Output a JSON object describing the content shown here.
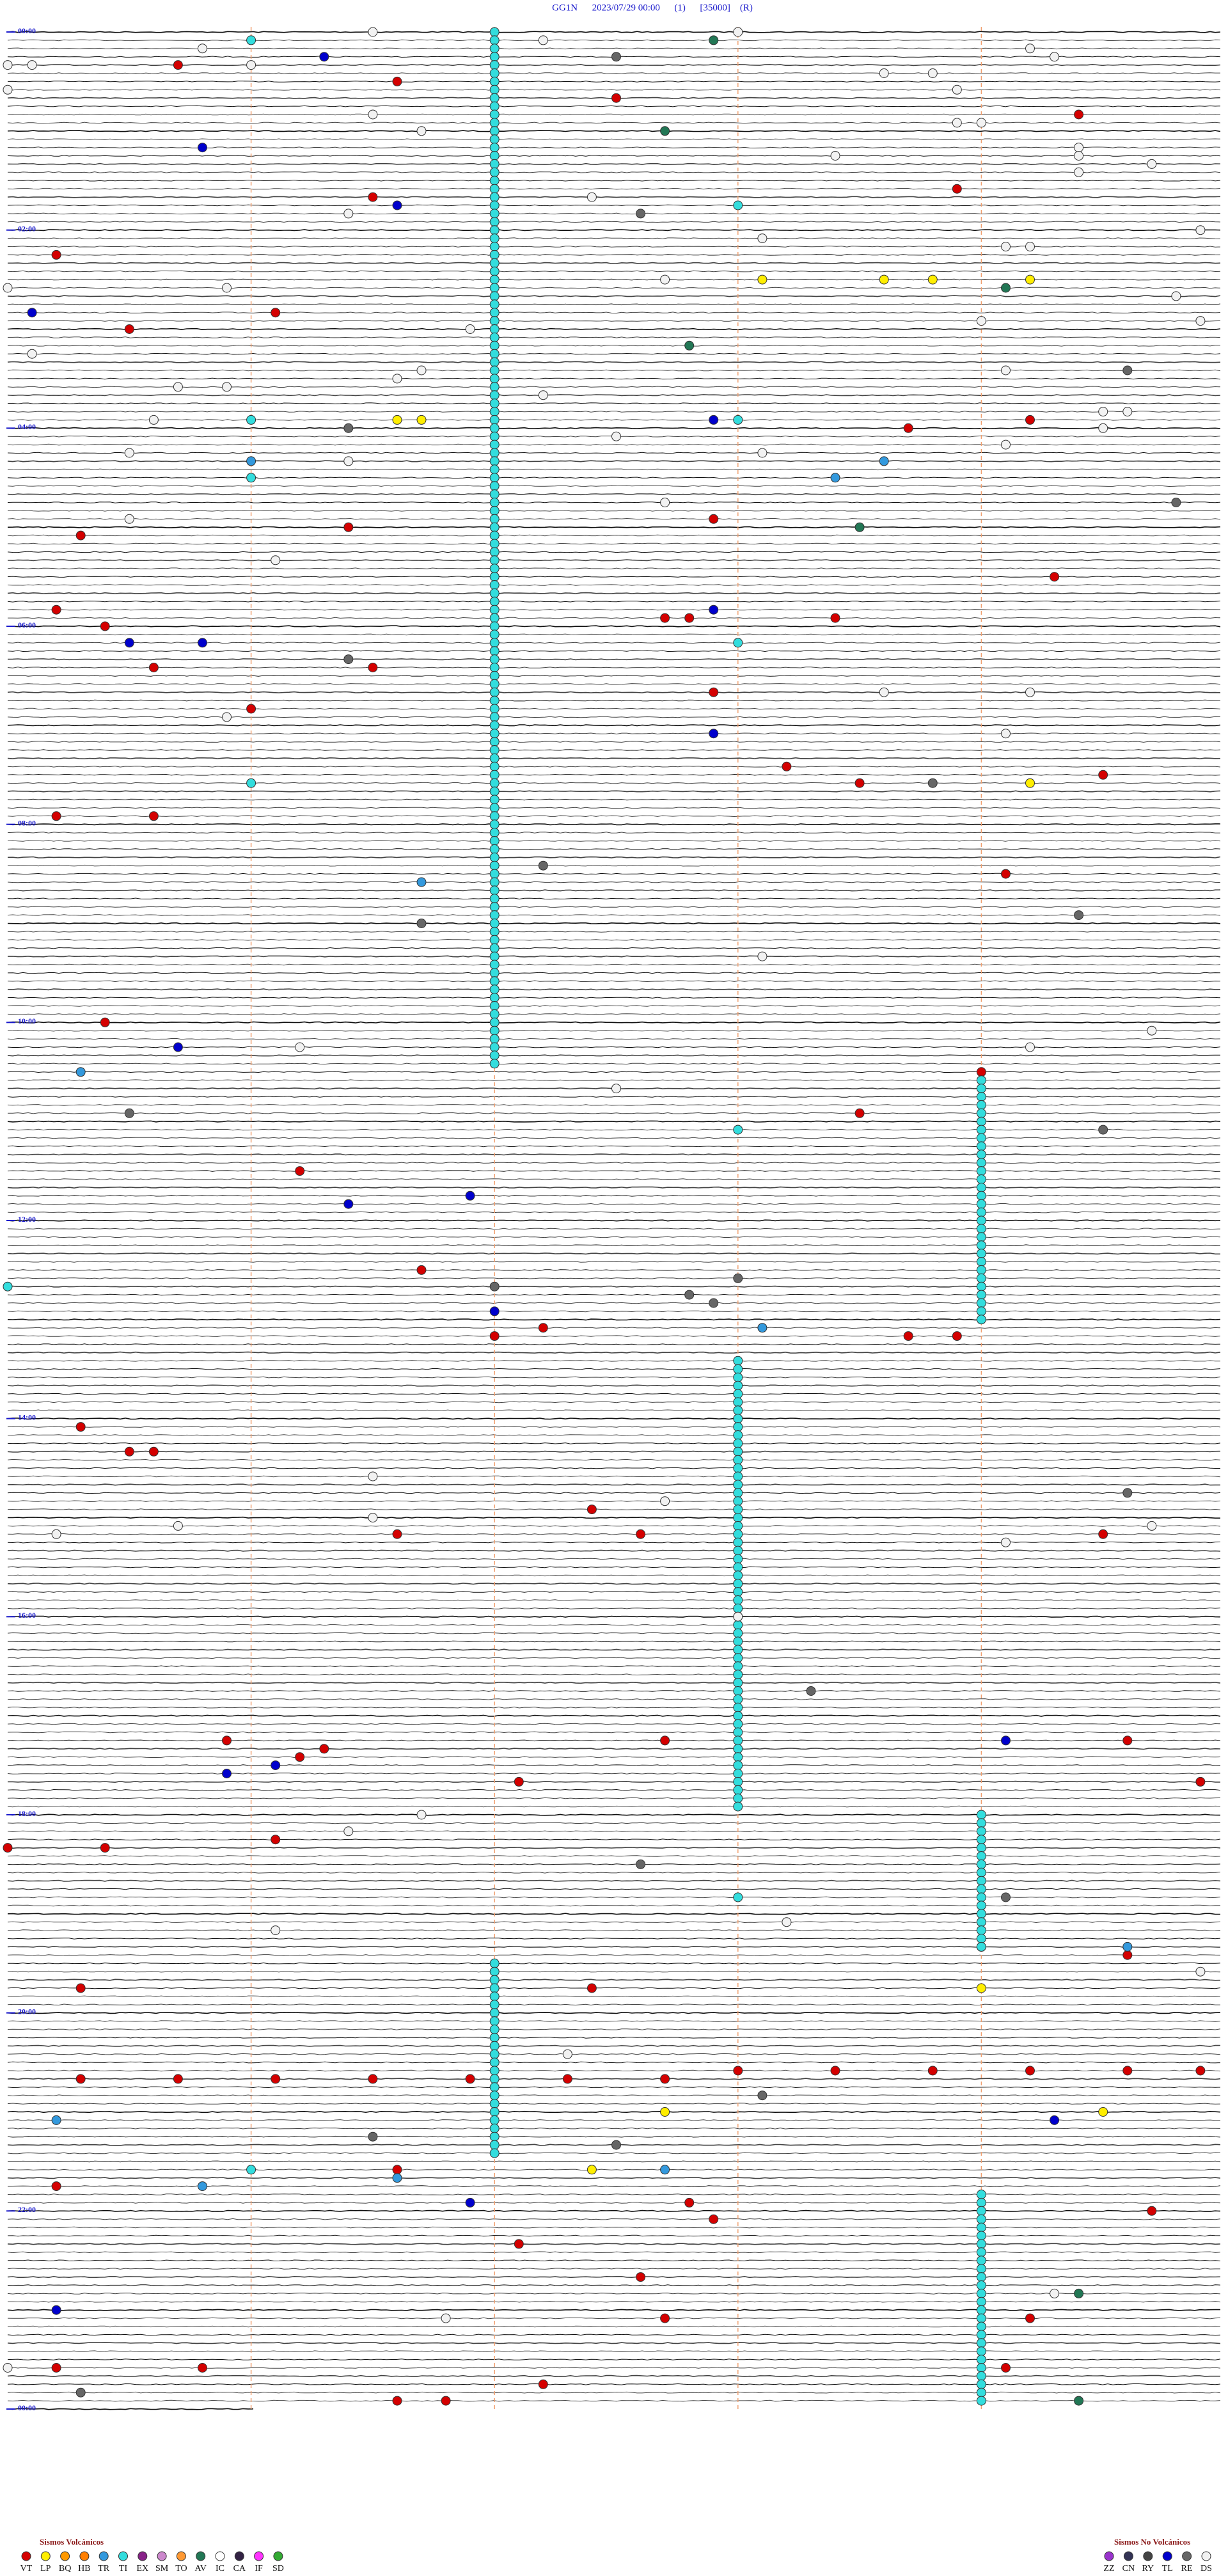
{
  "header": {
    "title": "GG1N      2023/07/29 00:00      (1)      [35000]    (R)"
  },
  "time_labels": [
    "00:00",
    "02:00",
    "04:00",
    "06:00",
    "08:00",
    "10:00",
    "12:00",
    "14:00",
    "16:00",
    "18:00",
    "20:00",
    "22:00",
    "00:00"
  ],
  "events": {
    "volcanic": {
      "title": "Sismos Volcánicos",
      "series": [
        {
          "name": "VT",
          "color": "#d40000",
          "values": [
            20.7,
            31.6,
            42.5,
            54.4,
            98.9,
            101.5,
            135.2,
            171.1,
            180.5,
            239.2,
            243.7,
            301.4,
            305.3,
            297.9,
            334.3,
            350.2,
            360.4,
            357.7,
            357.8,
            358.4,
            385.6,
            386.5,
            411,
            402.9,
            448.2,
            458.5,
            454.5,
            475.2,
            475.6,
            514.1,
            600.4,
            634,
            658.5,
            691.2,
            751.7,
            787.2,
            792,
            793.7,
            793.9,
            845.3,
            860.5,
            860.6,
            897.4,
            911.6,
            912.6,
            914.5,
            1035.9,
            1037.7,
            1039.6,
            1041.3,
            1046.2,
            1062.1,
            1064.9,
            1100.4,
            1096.1,
            1100,
            1169.6,
            1185.3,
            1187.4,
            1240.3,
            1240.7,
            1241.1,
            1241.5,
            1241.9,
            1242.3,
            1242.7,
            1238,
            1238.4,
            1238.8,
            1239.2,
            1239.6,
            1239.9,
            1296.6,
            1305.2,
            1317.8,
            1324.7,
            1327.9,
            1342.1,
            1362.6,
            1387.7,
            1389.2,
            1394,
            1415.2,
            1415.8,
            1419.1,
            1427.2,
            1436.6,
            1436.8
          ]
        },
        {
          "name": "LP",
          "color": "#ffee00",
          "values": [
            236.6,
            236.7,
            153.1,
            153.6,
            153.8,
            154.2,
            459.2,
            1297.4,
            1262.7,
            1264.5,
            1189,
            1164
          ]
        },
        {
          "name": "BQ",
          "color": "#ff9900"
        },
        {
          "name": "HB",
          "color": "#ff7f00"
        },
        {
          "name": "TR",
          "color": "#3399dd",
          "values": [
            261,
            263.6,
            273.4,
            516.7,
            630.3,
            788.1,
            1164.6,
            1265.2,
            1297.7,
            1301.6,
            1305.8
          ]
        },
        {
          "name": "TI",
          "color": "#33dddd",
          "values": [
            2,
            7,
            12,
            17,
            22,
            27,
            32,
            37,
            42,
            47,
            52,
            57,
            62,
            67,
            72,
            77,
            82,
            87,
            92,
            97,
            102,
            107,
            112,
            117,
            122,
            127,
            132,
            137,
            142,
            147,
            152,
            157,
            162,
            167,
            172,
            177,
            182,
            187,
            192,
            197,
            202,
            207,
            212,
            217,
            222,
            227,
            232,
            237,
            242,
            247,
            252,
            257,
            262,
            267,
            272,
            277,
            282,
            287,
            292,
            297,
            302,
            307,
            312,
            317,
            322,
            327,
            332,
            337,
            342,
            347,
            352,
            357,
            362,
            367,
            372,
            377,
            382,
            387,
            392,
            397,
            402,
            407,
            412,
            417,
            422,
            427,
            432,
            437,
            442,
            447,
            452,
            457,
            462,
            467,
            472,
            477,
            482,
            487,
            492,
            497,
            502,
            507,
            512,
            517,
            522,
            527,
            532,
            537,
            542,
            547,
            552,
            557,
            562,
            567,
            572,
            577,
            582,
            587,
            592,
            597,
            602,
            607,
            612,
            617,
            622,
            627,
            639,
            644,
            649,
            654,
            659,
            664,
            669,
            674,
            679,
            684,
            689,
            694,
            699,
            704,
            709,
            714,
            719,
            724,
            729,
            734,
            739,
            744,
            749,
            754,
            759,
            764,
            769,
            774,
            779,
            784,
            808,
            813,
            818,
            823,
            828,
            833,
            838,
            843,
            848,
            853,
            858,
            863,
            868,
            873,
            878,
            883,
            888,
            893,
            898,
            903,
            908,
            913,
            918,
            923,
            928,
            933,
            938,
            943,
            948,
            953,
            958,
            963,
            968,
            973,
            978,
            983,
            988,
            993,
            998,
            1003,
            1008,
            1013,
            1018,
            1023,
            1028,
            1033,
            1038,
            1043,
            1048,
            1053,
            1058,
            1063,
            1068,
            1073,
            1078,
            1084,
            1089,
            1094,
            1099,
            1104,
            1109,
            1114,
            1119,
            1124,
            1129,
            1134,
            1139,
            1144,
            1149,
            1154,
            1159,
            1164,
            1172,
            1177,
            1182,
            1187,
            1192,
            1197,
            1202,
            1207,
            1212,
            1217,
            1222,
            1227,
            1232,
            1237,
            1242,
            1247,
            1252,
            1257,
            1262,
            1267,
            1272,
            1277,
            1282,
            1287,
            1314,
            1319,
            1324,
            1329,
            1334,
            1339,
            1344,
            1349,
            1354,
            1359,
            1364,
            1369,
            1374,
            1379,
            1384,
            1389,
            1394,
            1399,
            1404,
            1409,
            1414,
            1419,
            1424,
            1429,
            1434,
            1439,
            6,
            236,
            271,
            456,
            108,
            238,
            373,
            668,
            760,
            1133,
            1296
          ]
        },
        {
          "name": "EX",
          "color": "#882288"
        },
        {
          "name": "SM",
          "color": "#cc88cc"
        },
        {
          "name": "TO",
          "color": "#ff9933"
        },
        {
          "name": "AV",
          "color": "#227755",
          "values": [
            7.9,
            62.7,
            192.8,
            303.5,
            159.1,
            1374.4,
            1439.4
          ]
        },
        {
          "name": "IC",
          "color": "#ffffff"
        },
        {
          "name": "CA",
          "color": "#332244"
        },
        {
          "name": "IF",
          "color": "#ff33ff"
        },
        {
          "name": "SD",
          "color": "#33aa33"
        }
      ]
    },
    "non_volcanic": {
      "title": "Sismos No Volcánicos",
      "series": [
        {
          "name": "ZZ",
          "color": "#9933cc"
        },
        {
          "name": "CN",
          "color": "#333355"
        },
        {
          "name": "RY",
          "color": "#444444"
        },
        {
          "name": "TL",
          "color": "#0000cc",
          "values": [
            16.3,
            70.8,
            106.6,
            170.1,
            237.9,
            352.9,
            370.5,
            370.8,
            427.9,
            615.7,
            711.4,
            706.9,
            777,
            1055.9,
            1051.1,
            1039.1,
            1316.9,
            1269.3,
            1380.2
          ]
        },
        {
          "name": "RE",
          "color": "#666666",
          "values": [
            17.5,
            112.6,
            241.4,
            381.4,
            289.8,
            458.8,
            507.2,
            539.4,
            541.7,
            655.5,
            669.5,
            762,
            758,
            767.8,
            772.9,
            889.6,
            1008.3,
            1276.5,
            1282.5,
            1253.1,
            209.6,
            1430.3,
            1134.1,
            1112.6
          ]
        },
        {
          "name": "DS",
          "color": "#f2f2f2",
          "values": [
            1.5,
            7.2,
            3,
            10.8,
            20.1,
            21,
            14.2,
            19.3,
            20,
            28.6,
            28.8,
            38.9,
            35,
            51.5,
            61.7,
            58.9,
            59,
            74.4,
            79.4,
            78.4,
            84.7,
            89.4,
            102.4,
            111.4,
            128.1,
            134.1,
            134.2,
            124.9,
            155.9,
            152.7,
            155,
            164.8,
            181.9,
            179,
            179.9,
            195.1,
            206.7,
            211.6,
            209.1,
            215.7,
            215.9,
            222.2,
            235.6,
            234.5,
            234.6,
            244.5,
            247.5,
            254.1,
            255.5,
            258.1,
            261.4,
            287.7,
            295.5,
            321.1,
            403.6,
            404.2,
            415.9,
            429.1,
            563.1,
            616.2,
            619.2,
            609.7,
            642.5,
            876.5,
            892.7,
            901.5,
            905.7,
            910.2,
            919.1,
            909.7,
            963,
            1091.4,
            1081.7,
            1148.2,
            1151.1,
            1179.9,
            1227.3,
            1386.8,
            1374.3,
            1415
          ]
        }
      ]
    }
  }
}
